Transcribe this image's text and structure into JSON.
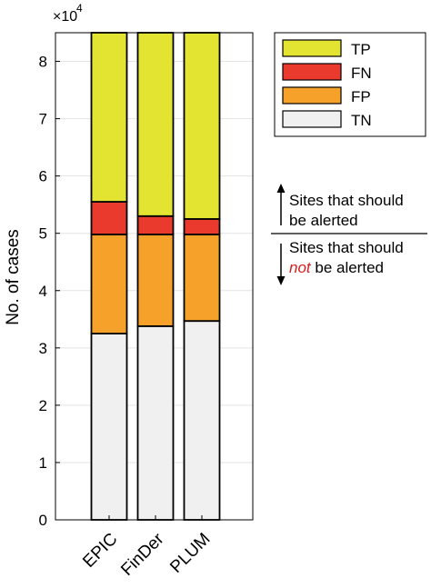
{
  "chart_data": {
    "type": "bar",
    "stacked": true,
    "categories": [
      "EPIC",
      "FinDer",
      "PLUM"
    ],
    "ylabel": "No. of cases",
    "y_multiplier_label": {
      "base": "×10",
      "exponent": "4"
    },
    "ylim": [
      0,
      8.5
    ],
    "yticks": [
      "0",
      "1",
      "2",
      "3",
      "4",
      "5",
      "6",
      "7",
      "8"
    ],
    "grid": true,
    "legend_position": "top-right",
    "series": [
      {
        "name": "TN",
        "color": "#f0f0f0",
        "values": [
          3.25,
          3.38,
          3.47
        ]
      },
      {
        "name": "FP",
        "color": "#f6a22a",
        "values": [
          1.73,
          1.6,
          1.51
        ]
      },
      {
        "name": "FN",
        "color": "#ea3a2e",
        "values": [
          0.57,
          0.32,
          0.27
        ]
      },
      {
        "name": "TP",
        "color": "#e3e332",
        "values": [
          2.95,
          3.2,
          3.25
        ]
      }
    ],
    "legend_order": [
      "TP",
      "FN",
      "FP",
      "TN"
    ],
    "annotations": {
      "upper_line1": "Sites that should",
      "upper_line2": "be alerted",
      "lower_line1": "Sites that should",
      "lower_not": "not",
      "lower_line2_rest": " be alerted",
      "not_color": "#d42020"
    }
  }
}
